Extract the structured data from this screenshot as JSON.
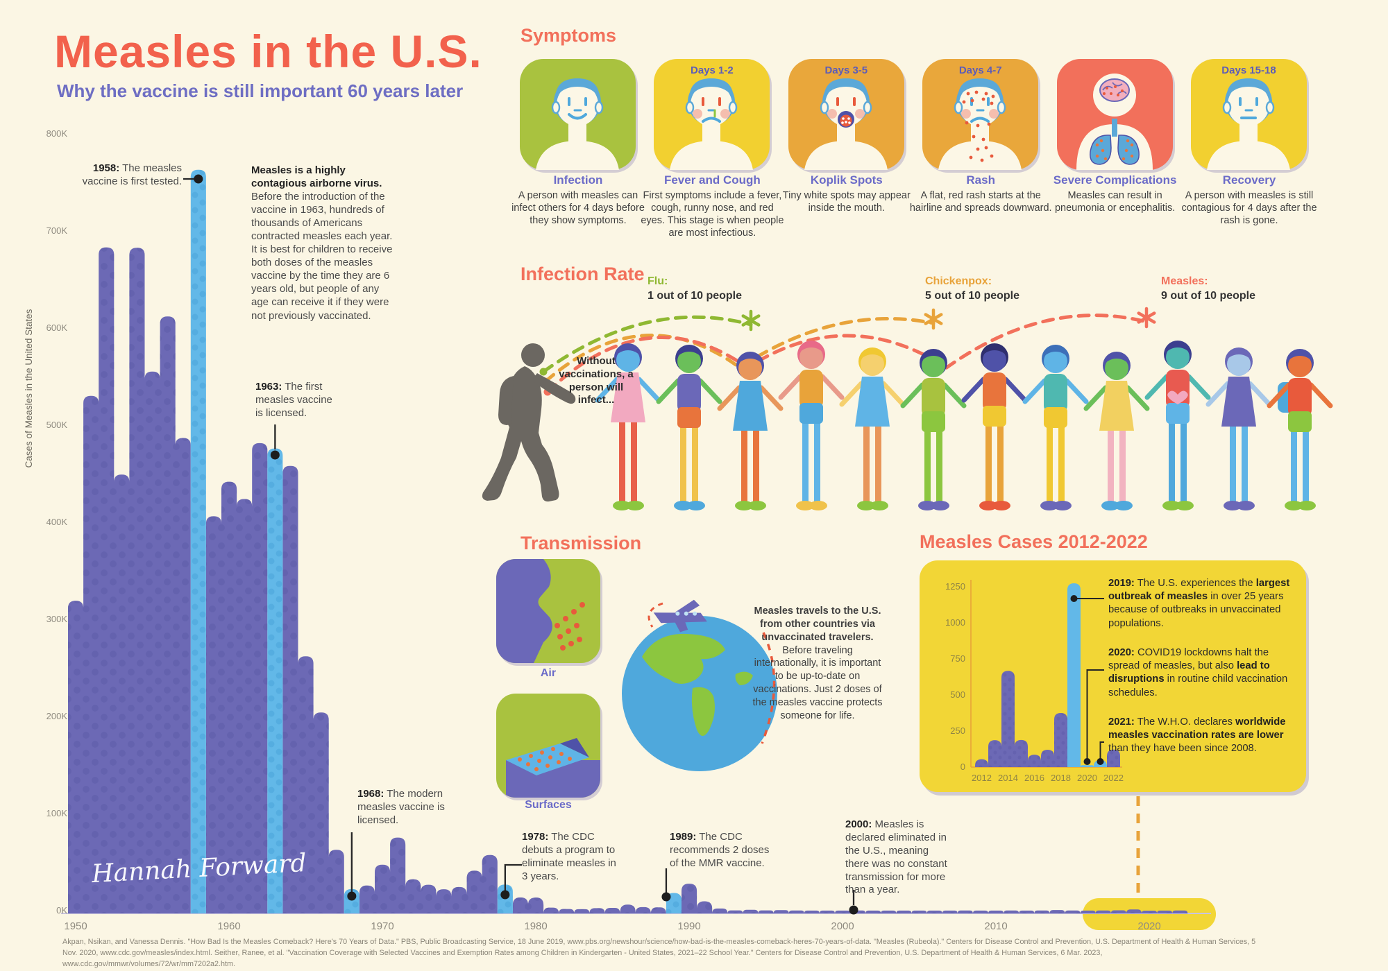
{
  "page": {
    "title": "Measles in the U.S.",
    "subtitle": "Why the vaccine is still important 60 years later",
    "signature": "Hannah Forward",
    "footer_lines": [
      "Akpan, Nsikan, and Vanessa Dennis. \"How Bad Is the Measles Comeback? Here's 70 Years of Data.\" PBS, Public Broadcasting Service, 18 June 2019, www.pbs.org/newshour/science/how-bad-is-the-measles-comeback-heres-70-years-of-data. \"Measles (Rubeola).\" Centers for Disease Control and Prevention, U.S. Department of Health & Human Services, 5",
      "Nov. 2020, www.cdc.gov/measles/index.html.  Seither, Ranee, et al. \"Vaccination Coverage with Selected Vaccines and Exemption Rates among Children in Kindergarten - United States, 2021–22 School Year.\" Centers for Disease Control and Prevention, U.S. Department of Health & Human Services, 6 Mar. 2023,",
      "www.cdc.gov/mmwr/volumes/72/wr/mm7202a2.htm."
    ]
  },
  "colors": {
    "background": "#FBF6E4",
    "accent_coral": "#F2705B",
    "title_coral": "#F2614C",
    "subtitle_purple": "#6E6EC3",
    "chart_purple": "#6C69B5",
    "chart_purple_dots": "#5B58A6",
    "highlight_blue": "#62B8E8",
    "highlight_blue_dots": "#4BA4D8",
    "card_green": "#A9C23F",
    "card_yellow": "#F2D030",
    "card_orange": "#E9A73B",
    "card_red": "#F2705B",
    "yellow_box": "#F2D636",
    "axis_gray": "#8f8b80",
    "silhouette": "#6B6761",
    "connector_orange": "#E8A33A"
  },
  "intro_paragraph": [
    {
      "t": "Measles is a highly contagious airborne virus.",
      "b": 1
    },
    {
      "t": " Before the introduction of the vaccine in 1963, hundreds of thousands of Americans contracted measles each year. It is best for children to receive both doses of the measles vaccine by the time they are 6 years old, but people of any age can receive it if they were not previously vaccinated."
    }
  ],
  "annotations": {
    "a1958": [
      {
        "t": "1958:",
        "b": 1
      },
      {
        "t": " The measles vaccine is first tested."
      }
    ],
    "a1963": [
      {
        "t": "1963:",
        "b": 1
      },
      {
        "t": " The first measles vaccine is licensed."
      }
    ],
    "a1968": [
      {
        "t": "1968:",
        "b": 1
      },
      {
        "t": " The modern measles vaccine is licensed."
      }
    ],
    "a1978": [
      {
        "t": "1978:",
        "b": 1
      },
      {
        "t": " The CDC debuts a program to eliminate measles in 3 years."
      }
    ],
    "a1989": [
      {
        "t": "1989:",
        "b": 1
      },
      {
        "t": " The CDC recommends 2 doses of the MMR vaccine."
      }
    ],
    "a2000": [
      {
        "t": "2000:",
        "b": 1
      },
      {
        "t": " Measles is declared eliminated in the U.S., meaning there was no constant transmission for more than a year."
      }
    ]
  },
  "symptoms": {
    "heading": "Symptoms",
    "cards": [
      {
        "days": "",
        "title": "Infection",
        "desc": "A person with measles can infect others for 4 days before they show symptoms.",
        "icon": "face-healthy",
        "color": "#A9C23F"
      },
      {
        "days": "Days 1-2",
        "title": "Fever and Cough",
        "desc": "First symptoms include a fever, cough, runny nose, and red eyes. This stage is when people are most infectious.",
        "icon": "face-fever",
        "color": "#F2D030"
      },
      {
        "days": "Days 3-5",
        "title": "Koplik Spots",
        "desc": "Tiny white spots may appear inside the mouth.",
        "icon": "face-koplik",
        "color": "#E9A73B"
      },
      {
        "days": "Days 4-7",
        "title": "Rash",
        "desc": "A flat, red rash starts at the hairline and spreads downward.",
        "icon": "face-rash",
        "color": "#E9A73B"
      },
      {
        "days": "",
        "title": "Severe Complications",
        "desc": "Measles can result in pneumonia or encephalitis.",
        "icon": "body-complications",
        "color": "#F2705B"
      },
      {
        "days": "Days 15-18",
        "title": "Recovery",
        "desc": "A person with measles is still contagious for 4 days after the rash is gone.",
        "icon": "face-recovery",
        "color": "#F2D030"
      }
    ]
  },
  "infection_rate": {
    "heading": "Infection Rate",
    "without_text": "Without vaccinations, a person will infect...",
    "flu": {
      "name": "Flu:",
      "rate": "1 out of 10 people",
      "color": "#8FB832",
      "hops": 1
    },
    "chickenpox": {
      "name": "Chickenpox:",
      "rate": "5 out of 10 people",
      "color": "#E8A33A",
      "hops": 2
    },
    "measles": {
      "name": "Measles:",
      "rate": "9 out of 10 people",
      "color": "#F2705B",
      "hops": 3
    }
  },
  "transmission": {
    "heading": "Transmission",
    "air_label": "Air",
    "surfaces_label": "Surfaces",
    "paragraph": [
      {
        "t": "Measles travels to the U.S. from other countries via unvaccinated travelers.",
        "b": 1
      },
      {
        "t": " Before traveling internationally, it is important to be up-to-date on vaccinations. Just 2 doses of the measles vaccine protects someone for life."
      }
    ]
  },
  "cases_box": {
    "heading": "Measles Cases 2012-2022",
    "notes": [
      [
        {
          "t": "2019:",
          "b": 1
        },
        {
          "t": " The U.S. experiences the "
        },
        {
          "t": "largest outbreak of measles",
          "b": 1
        },
        {
          "t": " in over 25 years because of outbreaks in unvaccinated populations."
        }
      ],
      [
        {
          "t": "2020:",
          "b": 1
        },
        {
          "t": " COVID19 lockdowns halt the spread of measles, but also "
        },
        {
          "t": "lead to disruptions",
          "b": 1
        },
        {
          "t": " in routine child vaccination schedules."
        }
      ],
      [
        {
          "t": "2021:",
          "b": 1
        },
        {
          "t": " The W.H.O. declares "
        },
        {
          "t": "worldwide measles vaccination rates are lower",
          "b": 1
        },
        {
          "t": " than they have been since 2008."
        }
      ]
    ]
  },
  "chart_data": [
    {
      "type": "area",
      "title": "Cases of Measles in the United States, 1950-2022",
      "ylabel": "Cases of Measles in the United States",
      "x_start_year": 1950,
      "x_tick_labels": [
        "1950",
        "1960",
        "1970",
        "1980",
        "1990",
        "2000",
        "2010",
        "2020"
      ],
      "y_tick_labels": [
        "800K",
        "700K",
        "600K",
        "500K",
        "400K",
        "300K",
        "200K",
        "100K",
        "0K"
      ],
      "ylim": [
        0,
        800000
      ],
      "grid": false,
      "highlight_years": [
        1958,
        1963,
        1968,
        1978,
        1989
      ],
      "values": [
        319124,
        530118,
        683077,
        449146,
        682720,
        555156,
        611936,
        486799,
        763094,
        406162,
        441703,
        423919,
        481530,
        476000,
        458083,
        261904,
        204136,
        62705,
        22231,
        25826,
        47351,
        75290,
        32275,
        26690,
        22094,
        24374,
        41126,
        57345,
        26871,
        13597,
        13506,
        3124,
        1714,
        1497,
        2587,
        2822,
        6282,
        3655,
        3396,
        18193,
        27786,
        9643,
        2237,
        312,
        963,
        309,
        508,
        138,
        100,
        100,
        86,
        116,
        44,
        56,
        37,
        66,
        55,
        43,
        140,
        71,
        63,
        220,
        55,
        187,
        667,
        188,
        86,
        120,
        375,
        1274,
        13,
        49,
        121
      ]
    },
    {
      "type": "area",
      "title": "Measles Cases 2012-2022",
      "x_start_year": 2012,
      "x_tick_labels": [
        "2012",
        "2014",
        "2016",
        "2018",
        "2020",
        "2022"
      ],
      "y_tick_labels": [
        "1250",
        "1000",
        "750",
        "500",
        "250",
        "0"
      ],
      "ylim": [
        0,
        1300
      ],
      "grid": false,
      "highlight_years": [
        2019,
        2020,
        2021
      ],
      "values": [
        55,
        187,
        667,
        188,
        86,
        120,
        375,
        1274,
        13,
        49,
        121
      ]
    }
  ],
  "illustration": {
    "silhouette_color": "#6B6761",
    "kids": [
      {
        "skin": "#5FB4E6",
        "hair": "#4F52A8",
        "top": "#F2A9C0",
        "dress": 1,
        "legs": "#E8604A",
        "shoes": "#8CC63F"
      },
      {
        "skin": "#6BBF5A",
        "hair": "#3C3F8F",
        "top": "#6B68B8",
        "bottom": "#E8743C",
        "legs": "#F0C24A",
        "shoes": "#4FA8DC"
      },
      {
        "skin": "#E8965A",
        "hair": "#4F52A8",
        "top": "#4FA8DC",
        "dress": 1,
        "legs": "#E8743C",
        "shoes": "#8CC63F"
      },
      {
        "skin": "#E89A8A",
        "hair": "#E86A88",
        "top": "#E8A33A",
        "bottom": "#4FA8DC",
        "legs": "#5FB4E6",
        "shoes": "#F0C24A"
      },
      {
        "skin": "#F5D06E",
        "hair": "#F0C832",
        "top": "#5FB4E6",
        "dress": 1,
        "legs": "#E8965A",
        "shoes": "#8CC63F"
      },
      {
        "skin": "#6BBF5A",
        "hair": "#3C3F8F",
        "top": "#A8C23F",
        "bottom": "#8CC63F",
        "legs": "#8CC63F",
        "shoes": "#6B68B8"
      },
      {
        "skin": "#4F52A8",
        "hair": "#2F2F6F",
        "top": "#E8743C",
        "bottom": "#F0C832",
        "legs": "#E8A33A",
        "shoes": "#E85A3C"
      },
      {
        "skin": "#5FB4E6",
        "hair": "#3C6FB8",
        "top": "#4FB8B0",
        "bottom": "#F0C832",
        "legs": "#F0C832",
        "shoes": "#6B68B8"
      },
      {
        "skin": "#6BBF5A",
        "hair": "#4F52A8",
        "top": "#F2D060",
        "dress": 1,
        "legs": "#F2B3C0",
        "shoes": "#4FA8DC"
      },
      {
        "skin": "#4FB8B0",
        "hair": "#3C3F8F",
        "top": "#E85A50",
        "heart": 1,
        "bottom": "#5FB4E6",
        "legs": "#4FA8DC",
        "shoes": "#8CC63F"
      },
      {
        "skin": "#A8C8E8",
        "hair": "#6B68B8",
        "top": "#6B68B8",
        "dress": 1,
        "legs": "#5FB4E6",
        "shoes": "#6B68B8"
      },
      {
        "skin": "#E8743C",
        "hair": "#4F52A8",
        "top": "#E85A3C",
        "backpack": "#4FA8DC",
        "bottom": "#8CC63F",
        "legs": "#5FB4E6",
        "shoes": "#8CC63F"
      }
    ]
  }
}
